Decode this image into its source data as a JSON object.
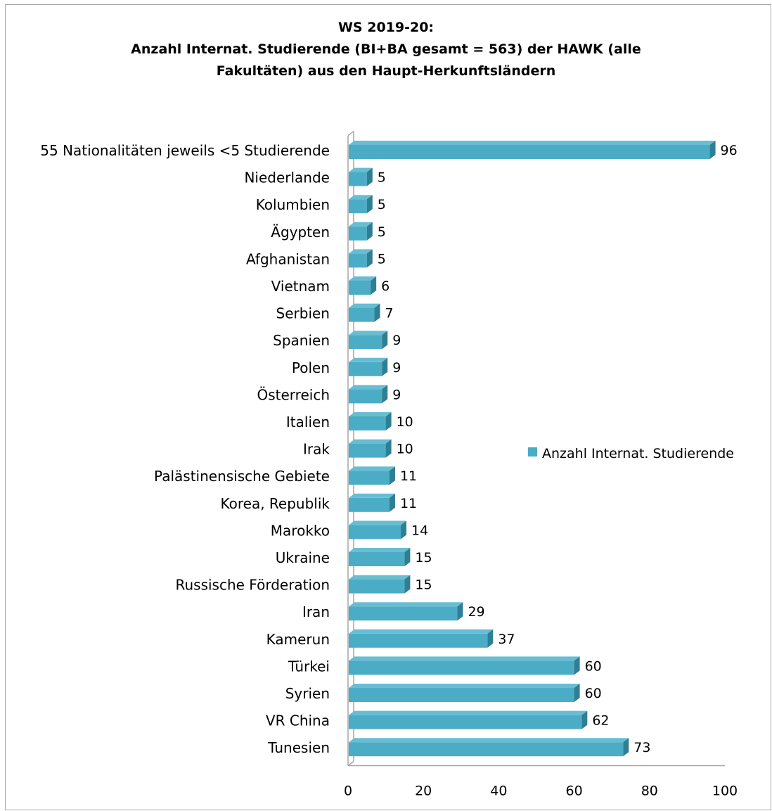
{
  "chart_data": {
    "type": "bar",
    "orientation": "horizontal",
    "title_lines": [
      "WS 2019-20:",
      "Anzahl Internat. Studierende (BI+BA gesamt = 563) der HAWK (alle",
      "Fakultäten) aus den Haupt-Herkunftsländern"
    ],
    "categories": [
      "55 Nationalitäten jeweils <5 Studierende",
      "Niederlande",
      "Kolumbien",
      "Ägypten",
      "Afghanistan",
      "Vietnam",
      "Serbien",
      "Spanien",
      "Polen",
      "Österreich",
      "Italien",
      "Irak",
      "Palästinensische Gebiete",
      "Korea, Republik",
      "Marokko",
      "Ukraine",
      "Russische Förderation",
      "Iran",
      "Kamerun",
      "Türkei",
      "Syrien",
      "VR China",
      "Tunesien"
    ],
    "series": [
      {
        "name": "Anzahl Internat. Studierende",
        "values": [
          96,
          5,
          5,
          5,
          5,
          6,
          7,
          9,
          9,
          9,
          10,
          10,
          11,
          11,
          14,
          15,
          15,
          29,
          37,
          60,
          60,
          62,
          73
        ]
      }
    ],
    "xlim": [
      0,
      100
    ],
    "x_ticks": [
      "0",
      "20",
      "40",
      "60",
      "80",
      "100"
    ],
    "grid": false,
    "legend_position": "right",
    "bar_color": "#4bacc6",
    "bar_top_color": "#69bdd3",
    "bar_side_color": "#2f7f94",
    "axis_color": "#a6a6a6"
  }
}
